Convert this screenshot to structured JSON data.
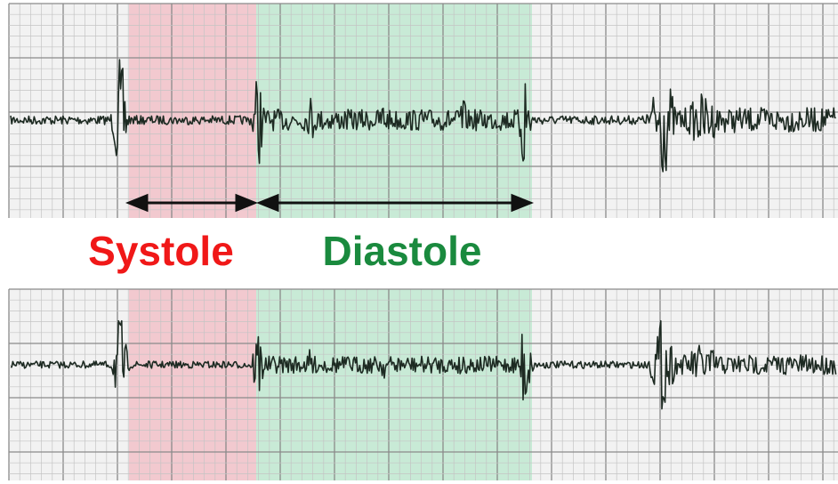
{
  "labels": {
    "systole": "Systole",
    "diastole": "Diastole"
  }
}
